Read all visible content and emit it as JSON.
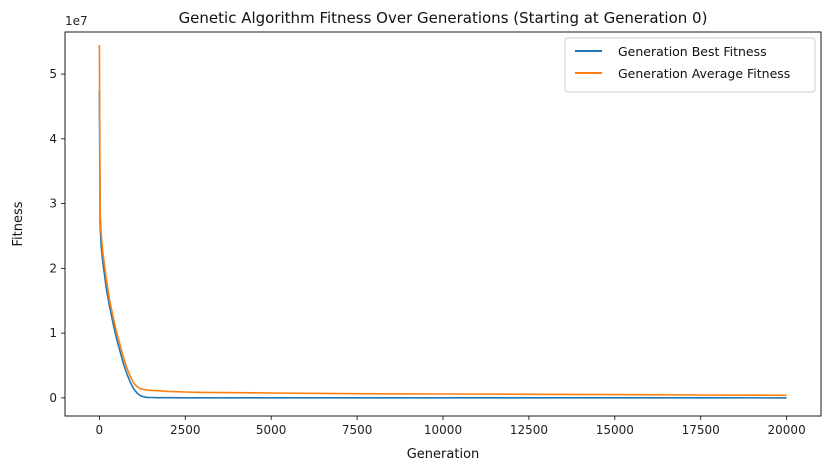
{
  "chart_data": {
    "type": "line",
    "title": "Genetic Algorithm Fitness Over Generations (Starting at Generation 0)",
    "xlabel": "Generation",
    "ylabel": "Fitness",
    "y_multiplier_label": "1e7",
    "xlim": [
      -1000,
      21000
    ],
    "ylim": [
      -2800000,
      56500000
    ],
    "x_ticks": [
      0,
      2500,
      5000,
      7500,
      10000,
      12500,
      15000,
      17500,
      20000
    ],
    "x_tick_labels": [
      "0",
      "2500",
      "5000",
      "7500",
      "10000",
      "12500",
      "15000",
      "17500",
      "20000"
    ],
    "y_ticks": [
      0,
      10000000,
      20000000,
      30000000,
      40000000,
      50000000
    ],
    "y_tick_labels": [
      "0",
      "1",
      "2",
      "3",
      "4",
      "5"
    ],
    "grid": false,
    "legend_position": "top-right",
    "series": [
      {
        "name": "Generation Best Fitness",
        "color": "#1f77b4",
        "x": [
          0,
          20,
          50,
          100,
          150,
          200,
          300,
          400,
          500,
          600,
          700,
          800,
          900,
          1000,
          1100,
          1200,
          1300,
          1400,
          1500,
          1700,
          2000,
          2500,
          3000,
          5000,
          7500,
          10000,
          12500,
          15000,
          17500,
          20000
        ],
        "y": [
          47500000,
          27000000,
          23500000,
          21000000,
          19000000,
          17000000,
          14000000,
          11500000,
          9200000,
          7200000,
          5300000,
          3700000,
          2400000,
          1400000,
          700000,
          300000,
          150000,
          80000,
          50000,
          30000,
          20000,
          15000,
          12000,
          10000,
          8000,
          6000,
          5000,
          4000,
          3000,
          2000
        ]
      },
      {
        "name": "Generation Average Fitness",
        "color": "#ff7f0e",
        "x": [
          0,
          20,
          50,
          100,
          150,
          200,
          300,
          400,
          500,
          600,
          700,
          800,
          900,
          1000,
          1100,
          1200,
          1300,
          1400,
          1500,
          1700,
          2000,
          2500,
          3000,
          5000,
          7500,
          10000,
          12500,
          15000,
          17500,
          20000
        ],
        "y": [
          54500000,
          29000000,
          25500000,
          22500000,
          20500000,
          18500000,
          15000000,
          12500000,
          10200000,
          8200000,
          6300000,
          4600000,
          3300000,
          2300000,
          1700000,
          1400000,
          1300000,
          1200000,
          1150000,
          1100000,
          1000000,
          900000,
          850000,
          750000,
          650000,
          600000,
          550000,
          500000,
          450000,
          400000
        ]
      }
    ]
  }
}
